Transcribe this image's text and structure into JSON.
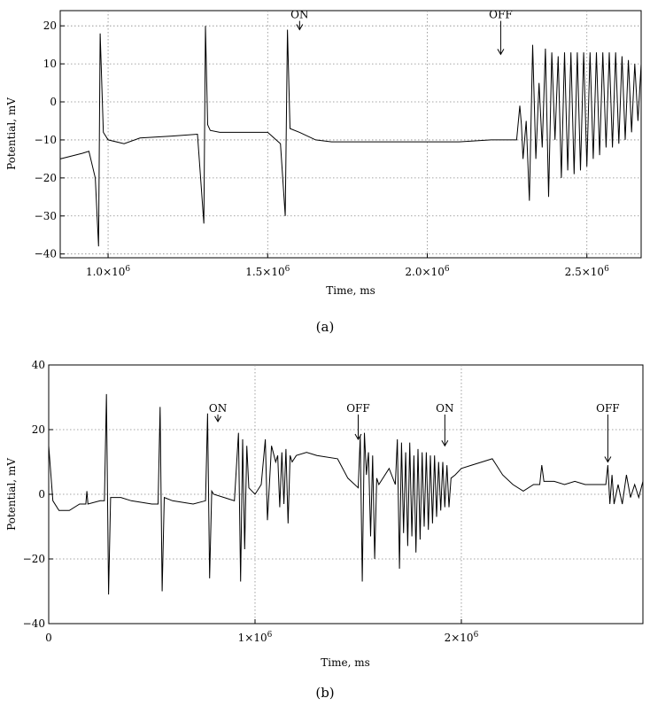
{
  "chart_data": [
    {
      "type": "line",
      "caption": "(a)",
      "xlabel": "Time, ms",
      "ylabel": "Potential, mV",
      "xlim": [
        850000,
        2670000
      ],
      "ylim": [
        -41,
        24
      ],
      "xticks": [
        {
          "value": 1000000,
          "label": "1.0×10",
          "exp": "6"
        },
        {
          "value": 1500000,
          "label": "1.5×10",
          "exp": "6"
        },
        {
          "value": 2000000,
          "label": "2.0×10",
          "exp": "6"
        },
        {
          "value": 2500000,
          "label": "2.5×10",
          "exp": "6"
        }
      ],
      "yticks": [
        {
          "value": 20,
          "label": "20"
        },
        {
          "value": 10,
          "label": "10"
        },
        {
          "value": 0,
          "label": "0"
        },
        {
          "value": -10,
          "label": "−10"
        },
        {
          "value": -20,
          "label": "−20"
        },
        {
          "value": -30,
          "label": "−30"
        },
        {
          "value": -40,
          "label": "−40"
        }
      ],
      "grid": true,
      "annotations": [
        {
          "text": "ON",
          "x": 1600000,
          "y_text": 22,
          "y_tip": 19
        },
        {
          "text": "OFF",
          "x": 2230000,
          "y_text": 22,
          "y_tip": 12.5
        }
      ],
      "series": [
        {
          "x": [
            850000,
            920000,
            940000,
            960000,
            970000,
            975000,
            985000,
            1000000,
            1050000,
            1100000,
            1200000,
            1280000,
            1300000,
            1305000,
            1312000,
            1320000,
            1350000,
            1400000,
            1500000,
            1540000,
            1555000,
            1562000,
            1570000,
            1600000,
            1650000,
            1700000,
            1800000,
            1900000,
            2000000,
            2100000,
            2200000,
            2280000,
            2290000,
            2295000,
            2300000,
            2310000,
            2320000,
            2330000,
            2340000,
            2350000,
            2360000,
            2370000,
            2380000,
            2390000,
            2400000,
            2410000,
            2420000,
            2430000,
            2440000,
            2450000,
            2460000,
            2470000,
            2480000,
            2490000,
            2500000,
            2510000,
            2520000,
            2530000,
            2540000,
            2550000,
            2560000,
            2570000,
            2580000,
            2590000,
            2600000,
            2610000,
            2620000,
            2630000,
            2640000,
            2650000,
            2660000,
            2670000
          ],
          "y": [
            -15,
            -13.5,
            -13,
            -20,
            -38,
            18,
            -8,
            -10,
            -11,
            -9.5,
            -9,
            -8.5,
            -32,
            20,
            -6,
            -7.5,
            -8,
            -8,
            -8,
            -11,
            -30,
            19,
            -7,
            -8,
            -10,
            -10.5,
            -10.5,
            -10.5,
            -10.5,
            -10.5,
            -10,
            -10,
            -1,
            -6,
            -15,
            -5,
            -26,
            15,
            -15,
            5,
            -12,
            14,
            -25,
            13,
            -10,
            12,
            -20,
            13,
            -18,
            13,
            -19,
            13,
            -18,
            13,
            -17,
            13,
            -15,
            13,
            -14,
            13,
            -12,
            13,
            -12,
            13,
            -11,
            12,
            -10,
            11,
            -8,
            10,
            -5,
            10
          ]
        }
      ]
    },
    {
      "type": "line",
      "caption": "(b)",
      "xlabel": "Time, ms",
      "ylabel": "Potential, mV",
      "xlim": [
        0,
        2880000
      ],
      "ylim": [
        -40,
        40
      ],
      "xticks": [
        {
          "value": 0,
          "label": "0",
          "exp": ""
        },
        {
          "value": 1000000,
          "label": "1×10",
          "exp": "6"
        },
        {
          "value": 2000000,
          "label": "2×10",
          "exp": "6"
        }
      ],
      "yticks": [
        {
          "value": 40,
          "label": "40"
        },
        {
          "value": 20,
          "label": "20"
        },
        {
          "value": 0,
          "label": "0"
        },
        {
          "value": -20,
          "label": "−20"
        },
        {
          "value": -40,
          "label": "−40"
        }
      ],
      "grid": true,
      "annotations": [
        {
          "text": "ON",
          "x": 820000,
          "y_text": 25.5,
          "y_tip": 22.5
        },
        {
          "text": "OFF",
          "x": 1500000,
          "y_text": 25.5,
          "y_tip": 17
        },
        {
          "text": "ON",
          "x": 1920000,
          "y_text": 25.5,
          "y_tip": 15
        },
        {
          "text": "OFF",
          "x": 2710000,
          "y_text": 25.5,
          "y_tip": 10
        }
      ],
      "series": [
        {
          "x": [
            0,
            20000,
            50000,
            100000,
            150000,
            180000,
            185000,
            190000,
            250000,
            270000,
            280000,
            290000,
            300000,
            350000,
            400000,
            500000,
            530000,
            540000,
            550000,
            560000,
            600000,
            700000,
            760000,
            770000,
            780000,
            790000,
            800000,
            850000,
            900000,
            920000,
            930000,
            940000,
            950000,
            960000,
            970000,
            1000000,
            1030000,
            1050000,
            1060000,
            1080000,
            1100000,
            1110000,
            1120000,
            1130000,
            1140000,
            1150000,
            1160000,
            1170000,
            1180000,
            1200000,
            1250000,
            1300000,
            1400000,
            1450000,
            1500000,
            1510000,
            1520000,
            1530000,
            1540000,
            1550000,
            1560000,
            1570000,
            1580000,
            1590000,
            1600000,
            1650000,
            1680000,
            1690000,
            1700000,
            1710000,
            1720000,
            1730000,
            1740000,
            1750000,
            1760000,
            1770000,
            1780000,
            1790000,
            1800000,
            1810000,
            1820000,
            1830000,
            1840000,
            1850000,
            1860000,
            1870000,
            1880000,
            1890000,
            1900000,
            1910000,
            1920000,
            1930000,
            1940000,
            1950000,
            1970000,
            2000000,
            2050000,
            2100000,
            2150000,
            2170000,
            2200000,
            2250000,
            2300000,
            2350000,
            2380000,
            2390000,
            2400000,
            2450000,
            2500000,
            2550000,
            2600000,
            2650000,
            2700000,
            2710000,
            2720000,
            2730000,
            2740000,
            2760000,
            2780000,
            2800000,
            2820000,
            2840000,
            2860000,
            2880000
          ],
          "y": [
            15,
            -2,
            -5,
            -5,
            -3,
            -3,
            1,
            -3,
            -2,
            -2,
            31,
            -31,
            -1,
            -1,
            -2,
            -3,
            -3,
            27,
            -30,
            -1,
            -2,
            -3,
            -2,
            25,
            -26,
            1,
            0,
            -1,
            -2,
            19,
            -27,
            17,
            -17,
            15,
            2,
            0,
            3,
            17,
            -8,
            15,
            10,
            12,
            -4,
            13,
            -3,
            14,
            -9,
            12,
            10,
            12,
            13,
            12,
            11,
            5,
            2,
            18,
            -27,
            19,
            6,
            13,
            -13,
            12,
            -20,
            5,
            3,
            8,
            3,
            17,
            -23,
            16,
            -12,
            13,
            -16,
            16,
            -13,
            12,
            -18,
            14,
            -14,
            13,
            -10,
            13,
            -11,
            12,
            -9,
            12,
            -7,
            10,
            -5,
            10,
            -4,
            9,
            -4,
            5,
            6,
            8,
            9,
            10,
            11,
            9,
            6,
            3,
            1,
            3,
            3,
            9,
            4,
            4,
            3,
            4,
            3,
            3,
            3,
            9,
            -3,
            6,
            -3,
            3,
            -3,
            6,
            -1,
            3,
            -1,
            4
          ]
        }
      ]
    }
  ]
}
